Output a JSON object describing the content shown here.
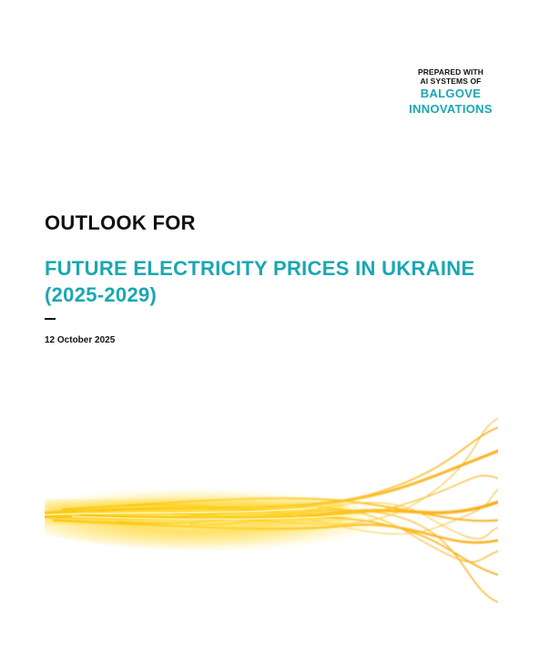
{
  "header": {
    "prepared_line1": "PREPARED WITH",
    "prepared_line2": "AI SYSTEMS OF",
    "company_line1": "BALGOVE",
    "company_line2": "INNOVATIONS",
    "accent_color": "#1aa7b2"
  },
  "cover": {
    "title": "OUTLOOK FOR",
    "subtitle": "FUTURE ELECTRICITY PRICES IN UKRAINE (2025-2029)",
    "date": "12 October 2025"
  },
  "illustration": {
    "name": "golden-light-streaks",
    "colors": [
      "#f7c400",
      "#f5a300",
      "#fff3a0"
    ]
  }
}
